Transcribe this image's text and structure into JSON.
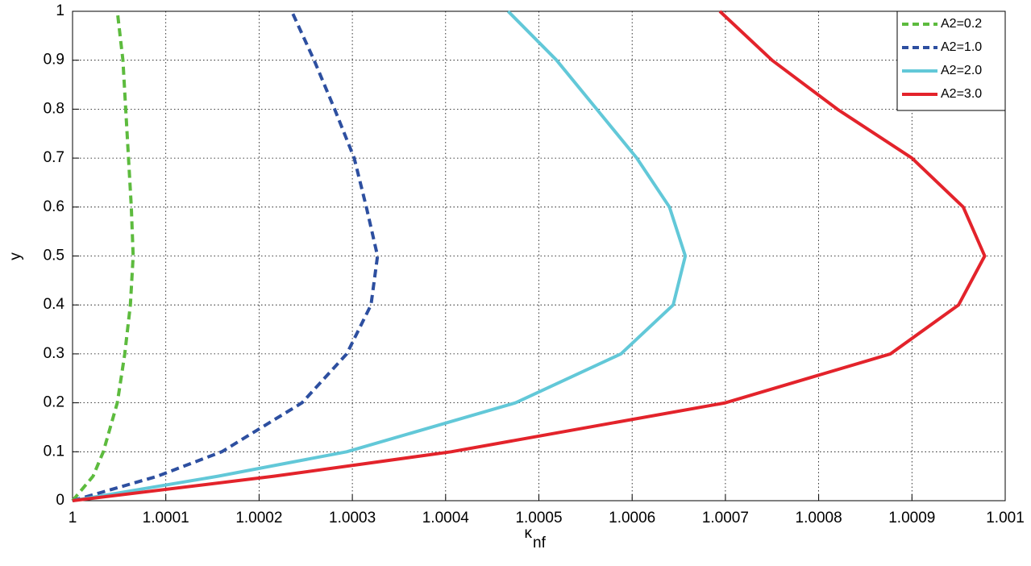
{
  "chart_data": {
    "type": "line",
    "x_label": "κ",
    "x_label_sub": "nf",
    "y_label": "y",
    "xlim": [
      1,
      1.001
    ],
    "ylim": [
      0,
      1
    ],
    "xticks": [
      1,
      1.0001,
      1.0002,
      1.0003,
      1.0004,
      1.0005,
      1.0006,
      1.0007,
      1.0008,
      1.0009,
      1.001
    ],
    "yticks": [
      0,
      0.1,
      0.2,
      0.3,
      0.4,
      0.5,
      0.6,
      0.7,
      0.8,
      0.9,
      1
    ],
    "grid": true,
    "legend": "northeast",
    "series": [
      {
        "name": "A2=0.2",
        "color": "#5dbb3e",
        "dash": true,
        "x": [
          1,
          1.000022,
          1.000033,
          1.000048,
          1.000056,
          1.000062,
          1.000065,
          1.000063,
          1.00006,
          1.000057,
          1.000054,
          1.000048
        ],
        "values": [
          0,
          0.05,
          0.1,
          0.2,
          0.3,
          0.4,
          0.5,
          0.6,
          0.7,
          0.8,
          0.9,
          1
        ]
      },
      {
        "name": "A2=1.0",
        "color": "#2d4fa0",
        "dash": true,
        "x": [
          1,
          1.000091,
          1.00016,
          1.000246,
          1.000294,
          1.00032,
          1.000327,
          1.000315,
          1.000302,
          1.000281,
          1.000259,
          1.000235
        ],
        "values": [
          0,
          0.05,
          0.1,
          0.2,
          0.3,
          0.4,
          0.5,
          0.6,
          0.7,
          0.8,
          0.9,
          1
        ]
      },
      {
        "name": "A2=2.0",
        "color": "#62c8d8",
        "dash": false,
        "x": [
          1,
          1.000156,
          1.000294,
          1.000475,
          1.000588,
          1.000644,
          1.000657,
          1.00064,
          1.000605,
          1.000562,
          1.000519,
          1.000467
        ],
        "values": [
          0,
          0.05,
          0.1,
          0.2,
          0.3,
          0.4,
          0.5,
          0.6,
          0.7,
          0.8,
          0.9,
          1
        ]
      },
      {
        "name": "A2=3.0",
        "color": "#e3232b",
        "dash": false,
        "x": [
          1,
          1.000216,
          1.000406,
          1.0007,
          1.000877,
          1.00095,
          1.000978,
          1.000955,
          1.0009,
          1.00082,
          1.00075,
          1.000694
        ],
        "values": [
          0,
          0.05,
          0.1,
          0.2,
          0.3,
          0.4,
          0.5,
          0.6,
          0.7,
          0.8,
          0.9,
          1
        ]
      }
    ]
  }
}
